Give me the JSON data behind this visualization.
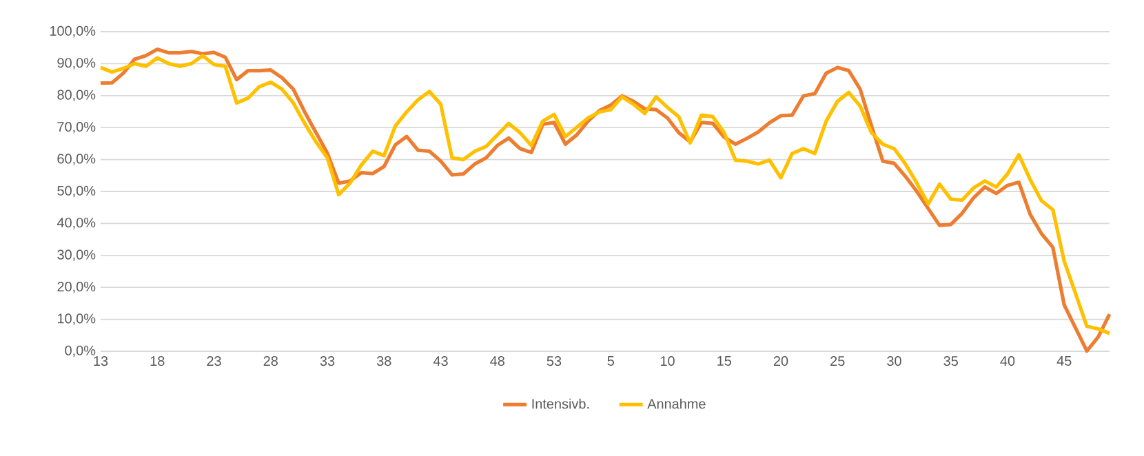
{
  "chart_data": {
    "type": "line",
    "categories": [
      "13",
      null,
      null,
      null,
      null,
      "18",
      null,
      null,
      null,
      null,
      "23",
      null,
      null,
      null,
      null,
      "28",
      null,
      null,
      null,
      null,
      "33",
      null,
      null,
      null,
      null,
      "38",
      null,
      null,
      null,
      null,
      "43",
      null,
      null,
      null,
      null,
      "48",
      null,
      null,
      null,
      null,
      "53",
      null,
      null,
      null,
      null,
      "5",
      null,
      null,
      null,
      null,
      "10",
      null,
      null,
      null,
      null,
      "15",
      null,
      null,
      null,
      null,
      "20",
      null,
      null,
      null,
      null,
      "25",
      null,
      null,
      null,
      null,
      "30",
      null,
      null,
      null,
      null,
      "35",
      null,
      null,
      null,
      null,
      "40",
      null,
      null,
      null,
      null,
      "45",
      null,
      null,
      null,
      null
    ],
    "series": [
      {
        "name": "Intensivb.",
        "color": "#ed7d31",
        "values": [
          83.9,
          84,
          87,
          91.4,
          92.5,
          94.5,
          93.4,
          93.4,
          93.8,
          93.1,
          93.5,
          92,
          85,
          87.8,
          87.8,
          88,
          85.6,
          82,
          74.9,
          68.4,
          62,
          52.6,
          53.3,
          55.9,
          55.6,
          57.8,
          64.6,
          67.2,
          62.9,
          62.6,
          59.5,
          55.2,
          55.5,
          58.6,
          60.5,
          64.4,
          66.7,
          63.4,
          62.2,
          71,
          71.6,
          64.8,
          67.7,
          72,
          75.3,
          77,
          79.9,
          78.2,
          75.9,
          75.6,
          73,
          68.4,
          65.5,
          71.6,
          71.3,
          67,
          64.8,
          66.6,
          68.6,
          71.5,
          73.7,
          73.9,
          79.9,
          80.6,
          87,
          88.8,
          87.8,
          82,
          70.5,
          59.5,
          58.8,
          54.7,
          50,
          44.7,
          39.4,
          39.7,
          43.2,
          48,
          51.4,
          49.4,
          51.9,
          52.9,
          42.8,
          36.8,
          32.5,
          14.5,
          7.3,
          0.1,
          4.5,
          11.6
        ]
      },
      {
        "name": "Annahme",
        "color": "#ffc000",
        "values": [
          88.8,
          87.4,
          88.5,
          90,
          89.2,
          91.8,
          90,
          89.2,
          90,
          92.5,
          89.7,
          89.2,
          77.7,
          79.2,
          82.8,
          84.2,
          82,
          77.7,
          71.3,
          65.5,
          60.5,
          49,
          52.6,
          58.3,
          62.6,
          61.2,
          70.5,
          74.9,
          78.7,
          81.3,
          77.3,
          60.5,
          60,
          62.6,
          64.1,
          67.7,
          71.3,
          68.4,
          64.4,
          72,
          74.1,
          67.2,
          70.1,
          73,
          74.9,
          75.6,
          79.6,
          77.3,
          74.4,
          79.6,
          76.3,
          73.4,
          65.2,
          73.9,
          73.4,
          68.4,
          59.8,
          59.5,
          58.6,
          59.8,
          54.3,
          61.9,
          63.4,
          61.9,
          72,
          78.2,
          81,
          76.7,
          68.4,
          64.8,
          63.4,
          58.6,
          52.6,
          46.1,
          52.3,
          47.6,
          47.3,
          51.1,
          53.3,
          51.4,
          55.5,
          61.5,
          53.7,
          47.1,
          44.3,
          28.2,
          18.1,
          7.8,
          7,
          5.6
        ]
      }
    ],
    "ylim": [
      0,
      100
    ],
    "yticks": [
      {
        "value": 0,
        "label": "0,0%"
      },
      {
        "value": 10,
        "label": "10,0%"
      },
      {
        "value": 20,
        "label": "20,0%"
      },
      {
        "value": 30,
        "label": "30,0%"
      },
      {
        "value": 40,
        "label": "40,0%"
      },
      {
        "value": 50,
        "label": "50,0%"
      },
      {
        "value": 60,
        "label": "60,0%"
      },
      {
        "value": 70,
        "label": "70,0%"
      },
      {
        "value": 80,
        "label": "80,0%"
      },
      {
        "value": 90,
        "label": "90,0%"
      },
      {
        "value": 100,
        "label": "100,0%"
      }
    ],
    "grid": "y",
    "legend": "bottom",
    "line_style": "solid"
  }
}
